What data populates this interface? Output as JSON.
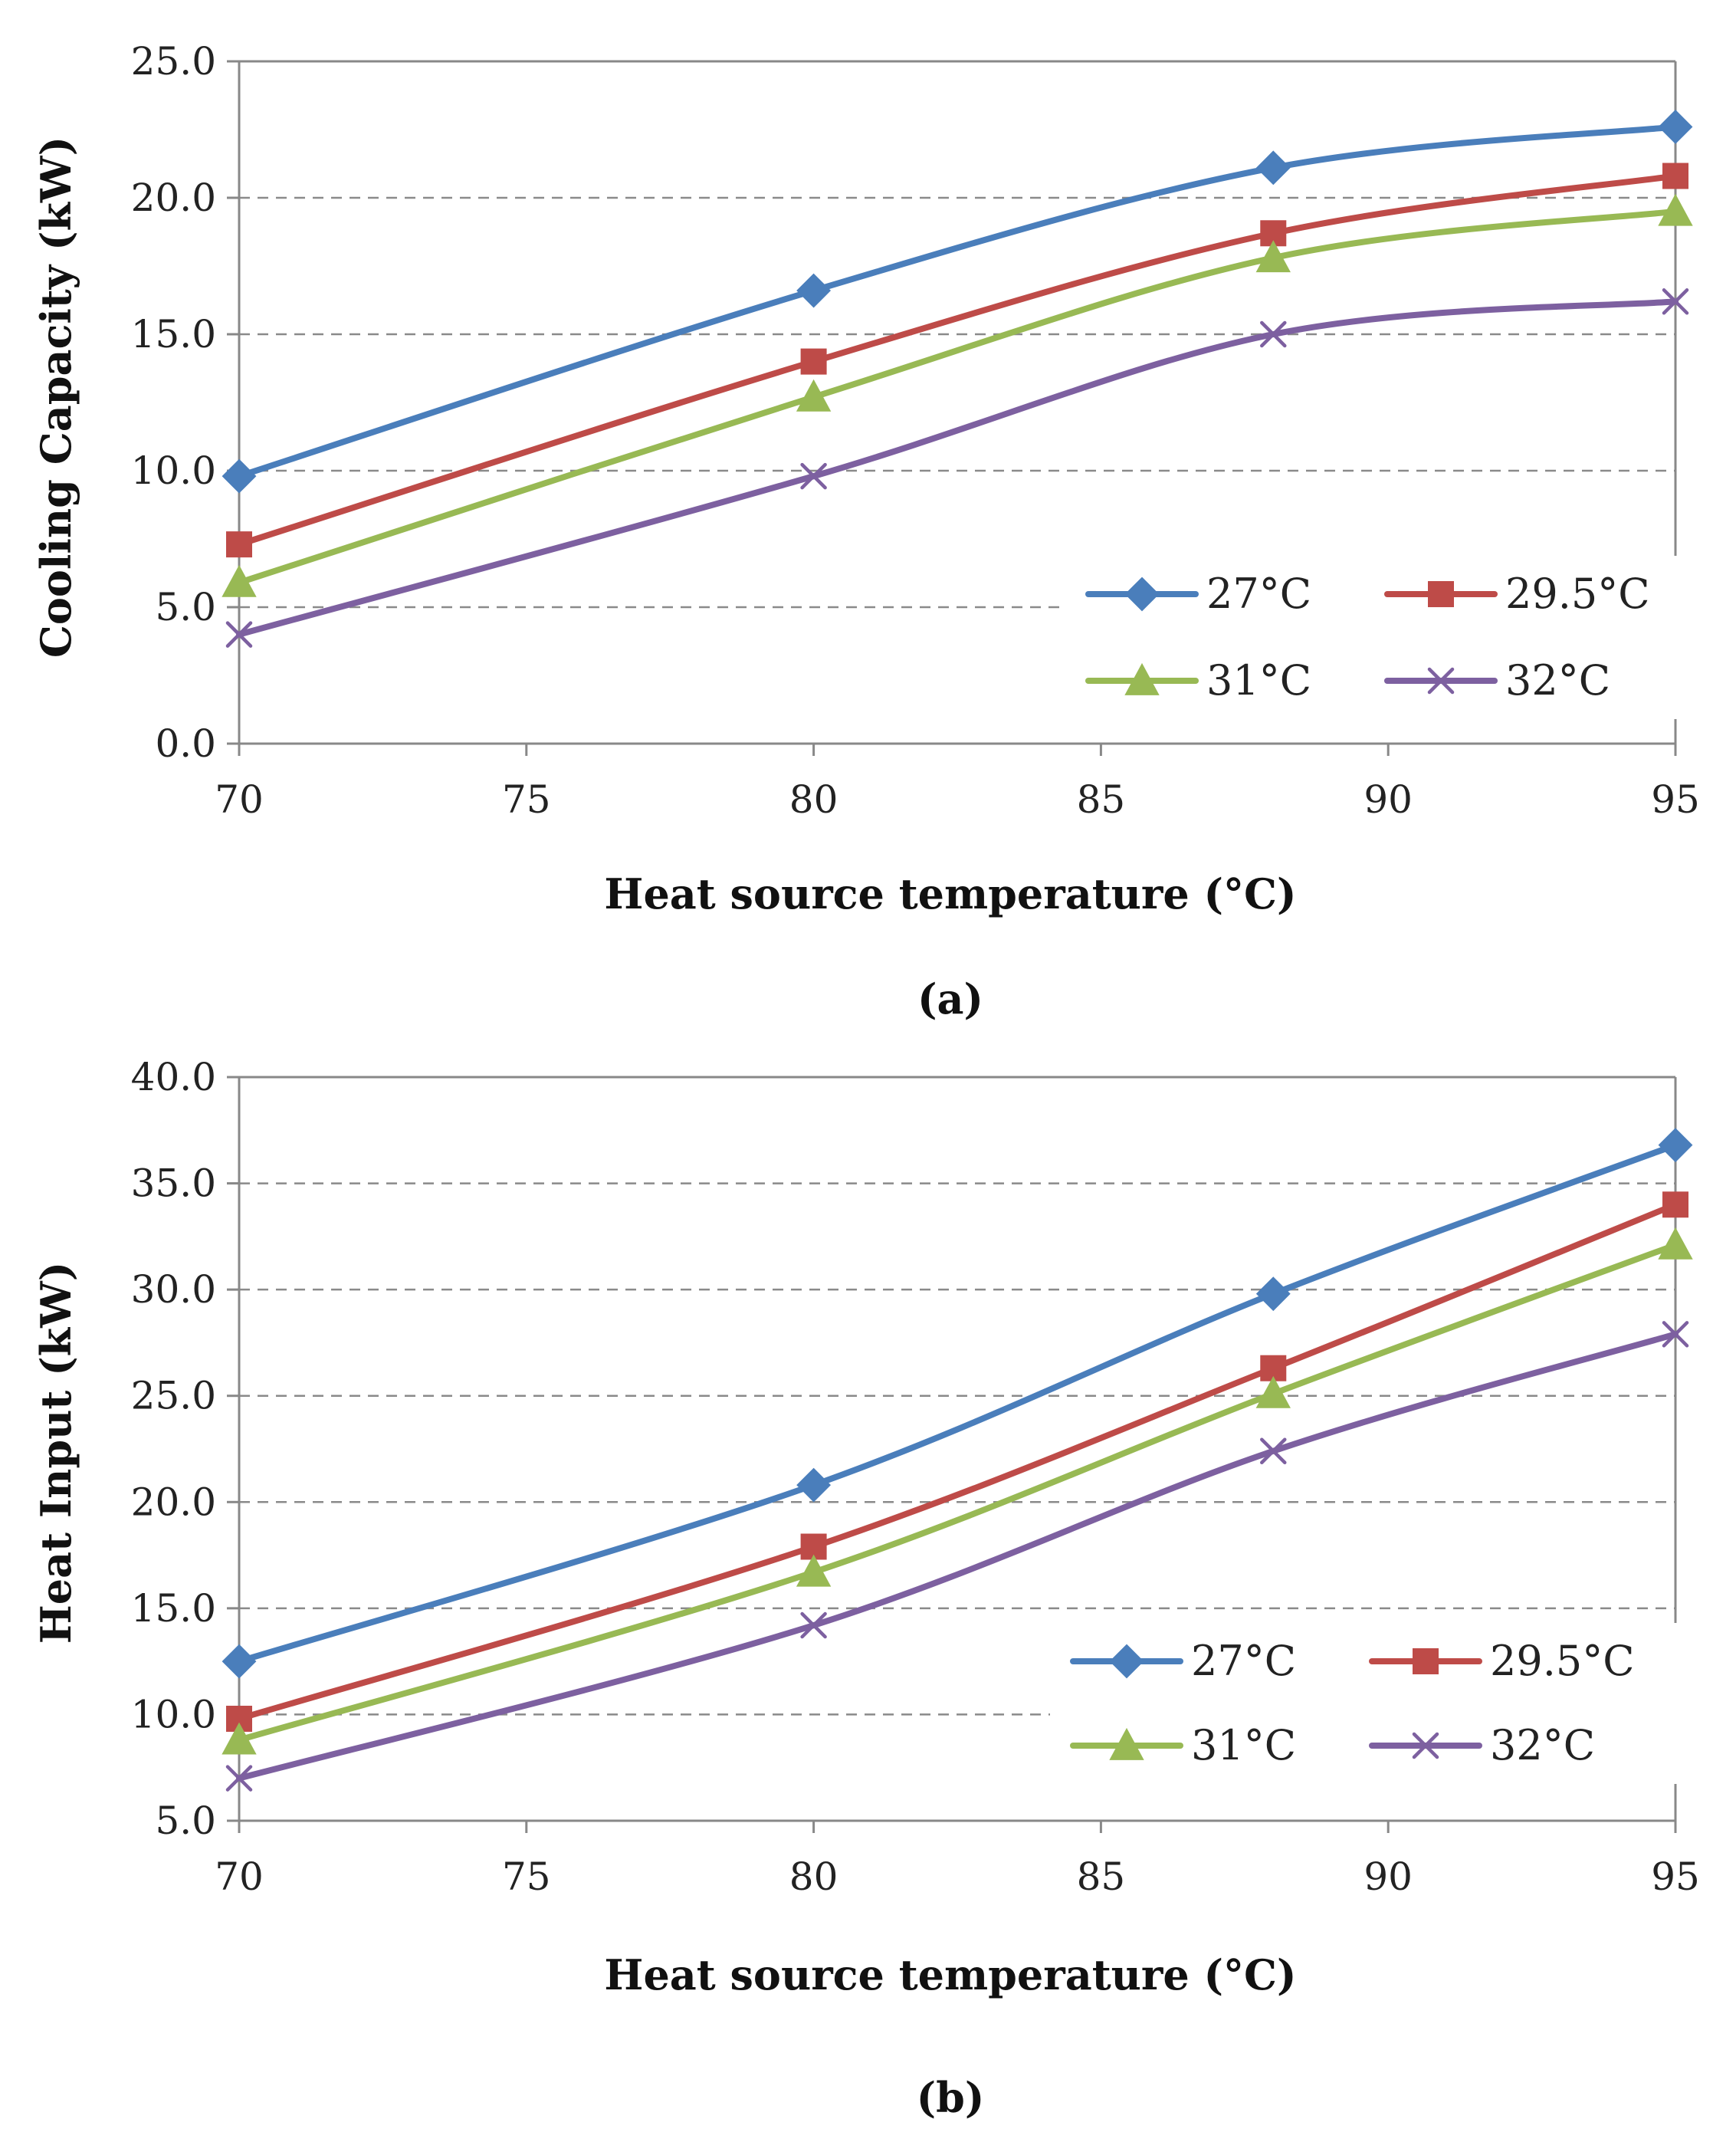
{
  "chart_data": [
    {
      "type": "line",
      "panel_label": "(a)",
      "xlabel": "Heat source temperature (°C)",
      "ylabel": "Cooling Capacity (kW)",
      "x": [
        70,
        80,
        88,
        95
      ],
      "xlim": [
        70,
        95
      ],
      "xticks": [
        "70",
        "75",
        "80",
        "85",
        "90",
        "95"
      ],
      "ylim": [
        0,
        25
      ],
      "yticks": [
        "0.0",
        "5.0",
        "10.0",
        "15.0",
        "20.0",
        "25.0"
      ],
      "grid": "horizontal dashed",
      "legend_position": "bottom-right",
      "series": [
        {
          "name": "27°C",
          "color": "#4a7ebb",
          "marker": "diamond",
          "values": [
            9.8,
            16.6,
            21.1,
            22.6
          ]
        },
        {
          "name": "29.5°C",
          "color": "#be4b48",
          "marker": "square",
          "values": [
            7.3,
            14.0,
            18.7,
            20.8
          ]
        },
        {
          "name": "31°C",
          "color": "#98b954",
          "marker": "triangle",
          "values": [
            5.9,
            12.7,
            17.8,
            19.5
          ]
        },
        {
          "name": "32°C",
          "color": "#7d60a0",
          "marker": "x",
          "values": [
            4.0,
            9.8,
            15.0,
            16.2
          ]
        }
      ]
    },
    {
      "type": "line",
      "panel_label": "(b)",
      "xlabel": "Heat source temperature (°C)",
      "ylabel": "Heat Input (kW)",
      "x": [
        70,
        80,
        88,
        95
      ],
      "xlim": [
        70,
        95
      ],
      "xticks": [
        "70",
        "75",
        "80",
        "85",
        "90",
        "95"
      ],
      "ylim": [
        5,
        40
      ],
      "yticks": [
        "5.0",
        "10.0",
        "15.0",
        "20.0",
        "25.0",
        "30.0",
        "35.0",
        "40.0"
      ],
      "grid": "horizontal dashed",
      "legend_position": "bottom-right",
      "series": [
        {
          "name": "27°C",
          "color": "#4a7ebb",
          "marker": "diamond",
          "values": [
            12.5,
            20.8,
            29.8,
            36.8
          ]
        },
        {
          "name": "29.5°C",
          "color": "#be4b48",
          "marker": "square",
          "values": [
            9.8,
            17.9,
            26.3,
            34.0
          ]
        },
        {
          "name": "31°C",
          "color": "#98b954",
          "marker": "triangle",
          "values": [
            8.8,
            16.7,
            25.1,
            32.1
          ]
        },
        {
          "name": "32°C",
          "color": "#7d60a0",
          "marker": "x",
          "values": [
            7.0,
            14.2,
            22.4,
            27.9
          ]
        }
      ]
    }
  ]
}
